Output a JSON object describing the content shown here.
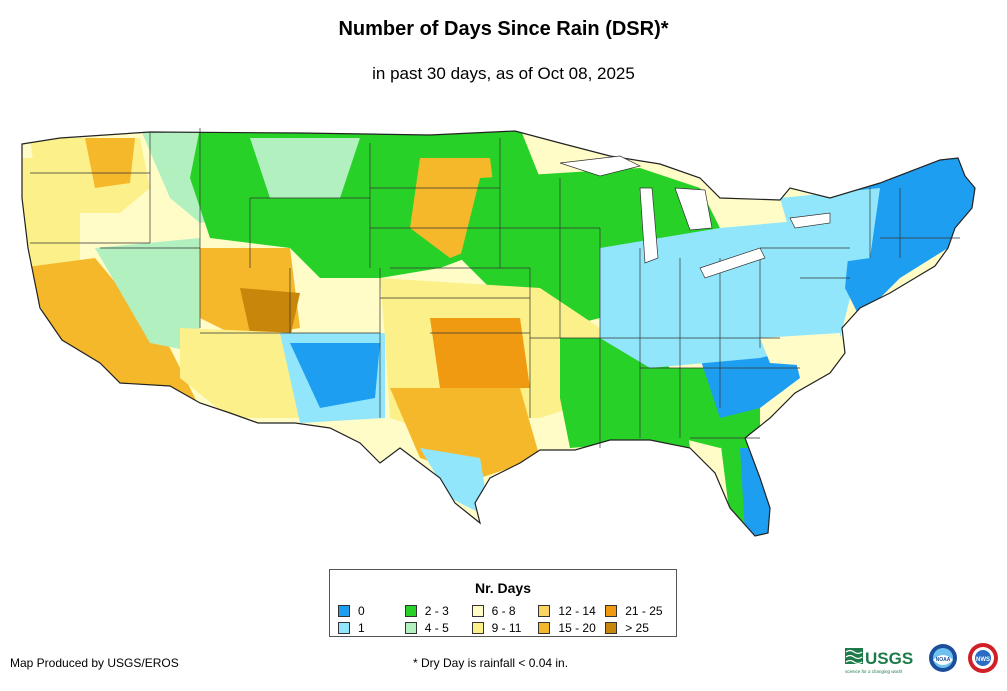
{
  "title": "Number of Days Since Rain (DSR)*",
  "subtitle": "in past 30 days, as of Oct 08, 2025",
  "legend": {
    "title": "Nr. Days",
    "items": [
      {
        "label": "0",
        "color": "#1e9ef0"
      },
      {
        "label": "2 - 3",
        "color": "#28d128"
      },
      {
        "label": "6 - 8",
        "color": "#fffcc8"
      },
      {
        "label": "12 - 14",
        "color": "#fbd462"
      },
      {
        "label": "21 - 25",
        "color": "#f09a12"
      },
      {
        "label": "1",
        "color": "#92e6fc"
      },
      {
        "label": "4 - 5",
        "color": "#b2f0c0"
      },
      {
        "label": "9 - 11",
        "color": "#fcf08a"
      },
      {
        "label": "15 - 20",
        "color": "#f5b82a"
      },
      {
        "label": "> 25",
        "color": "#c8860a"
      }
    ]
  },
  "credit": "Map Produced by USGS/EROS",
  "footnote": "* Dry Day is rainfall < 0.04 in.",
  "logos": {
    "usgs_text": "USGS",
    "usgs_tagline": "science for a changing world",
    "noaa_text": "NOAA",
    "nws_text": "NWS"
  }
}
